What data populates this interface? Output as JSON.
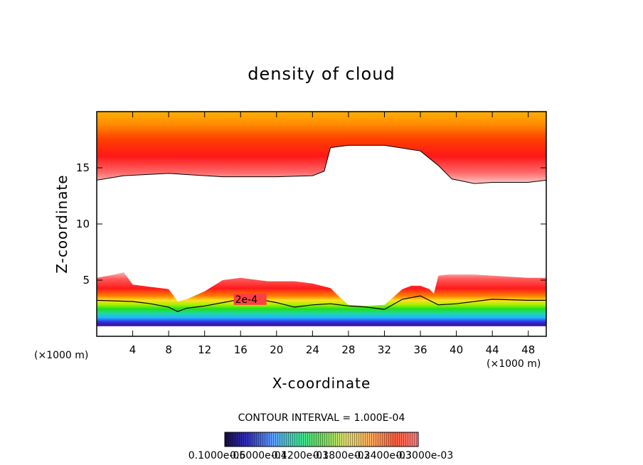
{
  "chart_data": {
    "type": "heatmap",
    "title": "density of cloud",
    "xlabel": "X-coordinate",
    "ylabel": "Z-coordinate",
    "x_unit": "(×1000 m)",
    "y_unit": "(×1000 m)",
    "xlim": [
      0,
      50
    ],
    "ylim": [
      0,
      20
    ],
    "x_ticks": [
      4,
      8,
      12,
      16,
      20,
      24,
      28,
      32,
      36,
      40,
      44,
      48
    ],
    "y_ticks": [
      5,
      10,
      15
    ],
    "contour_interval_text": "CONTOUR INTERVAL = 1.000E-04",
    "contour_label": "2e-4",
    "colorbar_labels": [
      "0.1000e-05",
      "0.6000e-04",
      "0.1200e-03",
      "0.1800e-03",
      "0.2400e-03",
      "0.3000e-03"
    ],
    "colormap": [
      "#2a0a8a",
      "#3a3adf",
      "#20c8ff",
      "#20d890",
      "#30e020",
      "#b0f000",
      "#fff020",
      "#ffc000",
      "#ff8000",
      "#ff3000",
      "#ff5050",
      "#ffa0a0",
      "#ffd0d0"
    ],
    "upper_layer": {
      "top": 20,
      "boundary_x": [
        0,
        3,
        8,
        14,
        20,
        24,
        25.3,
        26,
        28,
        32,
        36,
        38,
        39.5,
        42,
        44,
        48,
        50
      ],
      "boundary_z": [
        13.9,
        14.3,
        14.5,
        14.2,
        14.2,
        14.3,
        14.7,
        16.8,
        17.0,
        17.0,
        16.5,
        15.2,
        14.0,
        13.6,
        13.7,
        13.7,
        13.9
      ]
    },
    "lower_layer": {
      "top_x": [
        0,
        2,
        3,
        4,
        6,
        8,
        9,
        10,
        12,
        14,
        16,
        18,
        19,
        20,
        22,
        24,
        26,
        27,
        28,
        30,
        32,
        33,
        34,
        35,
        36,
        37,
        37.5,
        38,
        39,
        42,
        44,
        46,
        48,
        50
      ],
      "top_z": [
        5.2,
        5.5,
        5.7,
        4.6,
        4.4,
        4.2,
        3.1,
        3.3,
        4.0,
        5.0,
        5.2,
        5.0,
        4.9,
        4.9,
        4.9,
        4.7,
        4.3,
        3.5,
        2.8,
        2.7,
        2.8,
        3.5,
        4.2,
        4.5,
        4.5,
        4.2,
        3.8,
        5.4,
        5.5,
        5.5,
        5.4,
        5.3,
        5.2,
        5.2
      ],
      "contour_2e4_x": [
        0,
        4,
        6,
        8,
        9,
        10,
        12,
        14,
        16,
        18,
        20,
        22,
        24,
        26,
        28,
        30,
        32,
        34,
        36,
        38,
        40,
        44,
        48,
        50
      ],
      "contour_2e4_z": [
        3.2,
        3.1,
        2.9,
        2.6,
        2.2,
        2.5,
        2.7,
        3.0,
        3.3,
        3.3,
        3.0,
        2.6,
        2.8,
        2.9,
        2.7,
        2.6,
        2.4,
        3.3,
        3.6,
        2.8,
        2.9,
        3.3,
        3.2,
        3.2
      ],
      "base_z": 0.9
    }
  }
}
